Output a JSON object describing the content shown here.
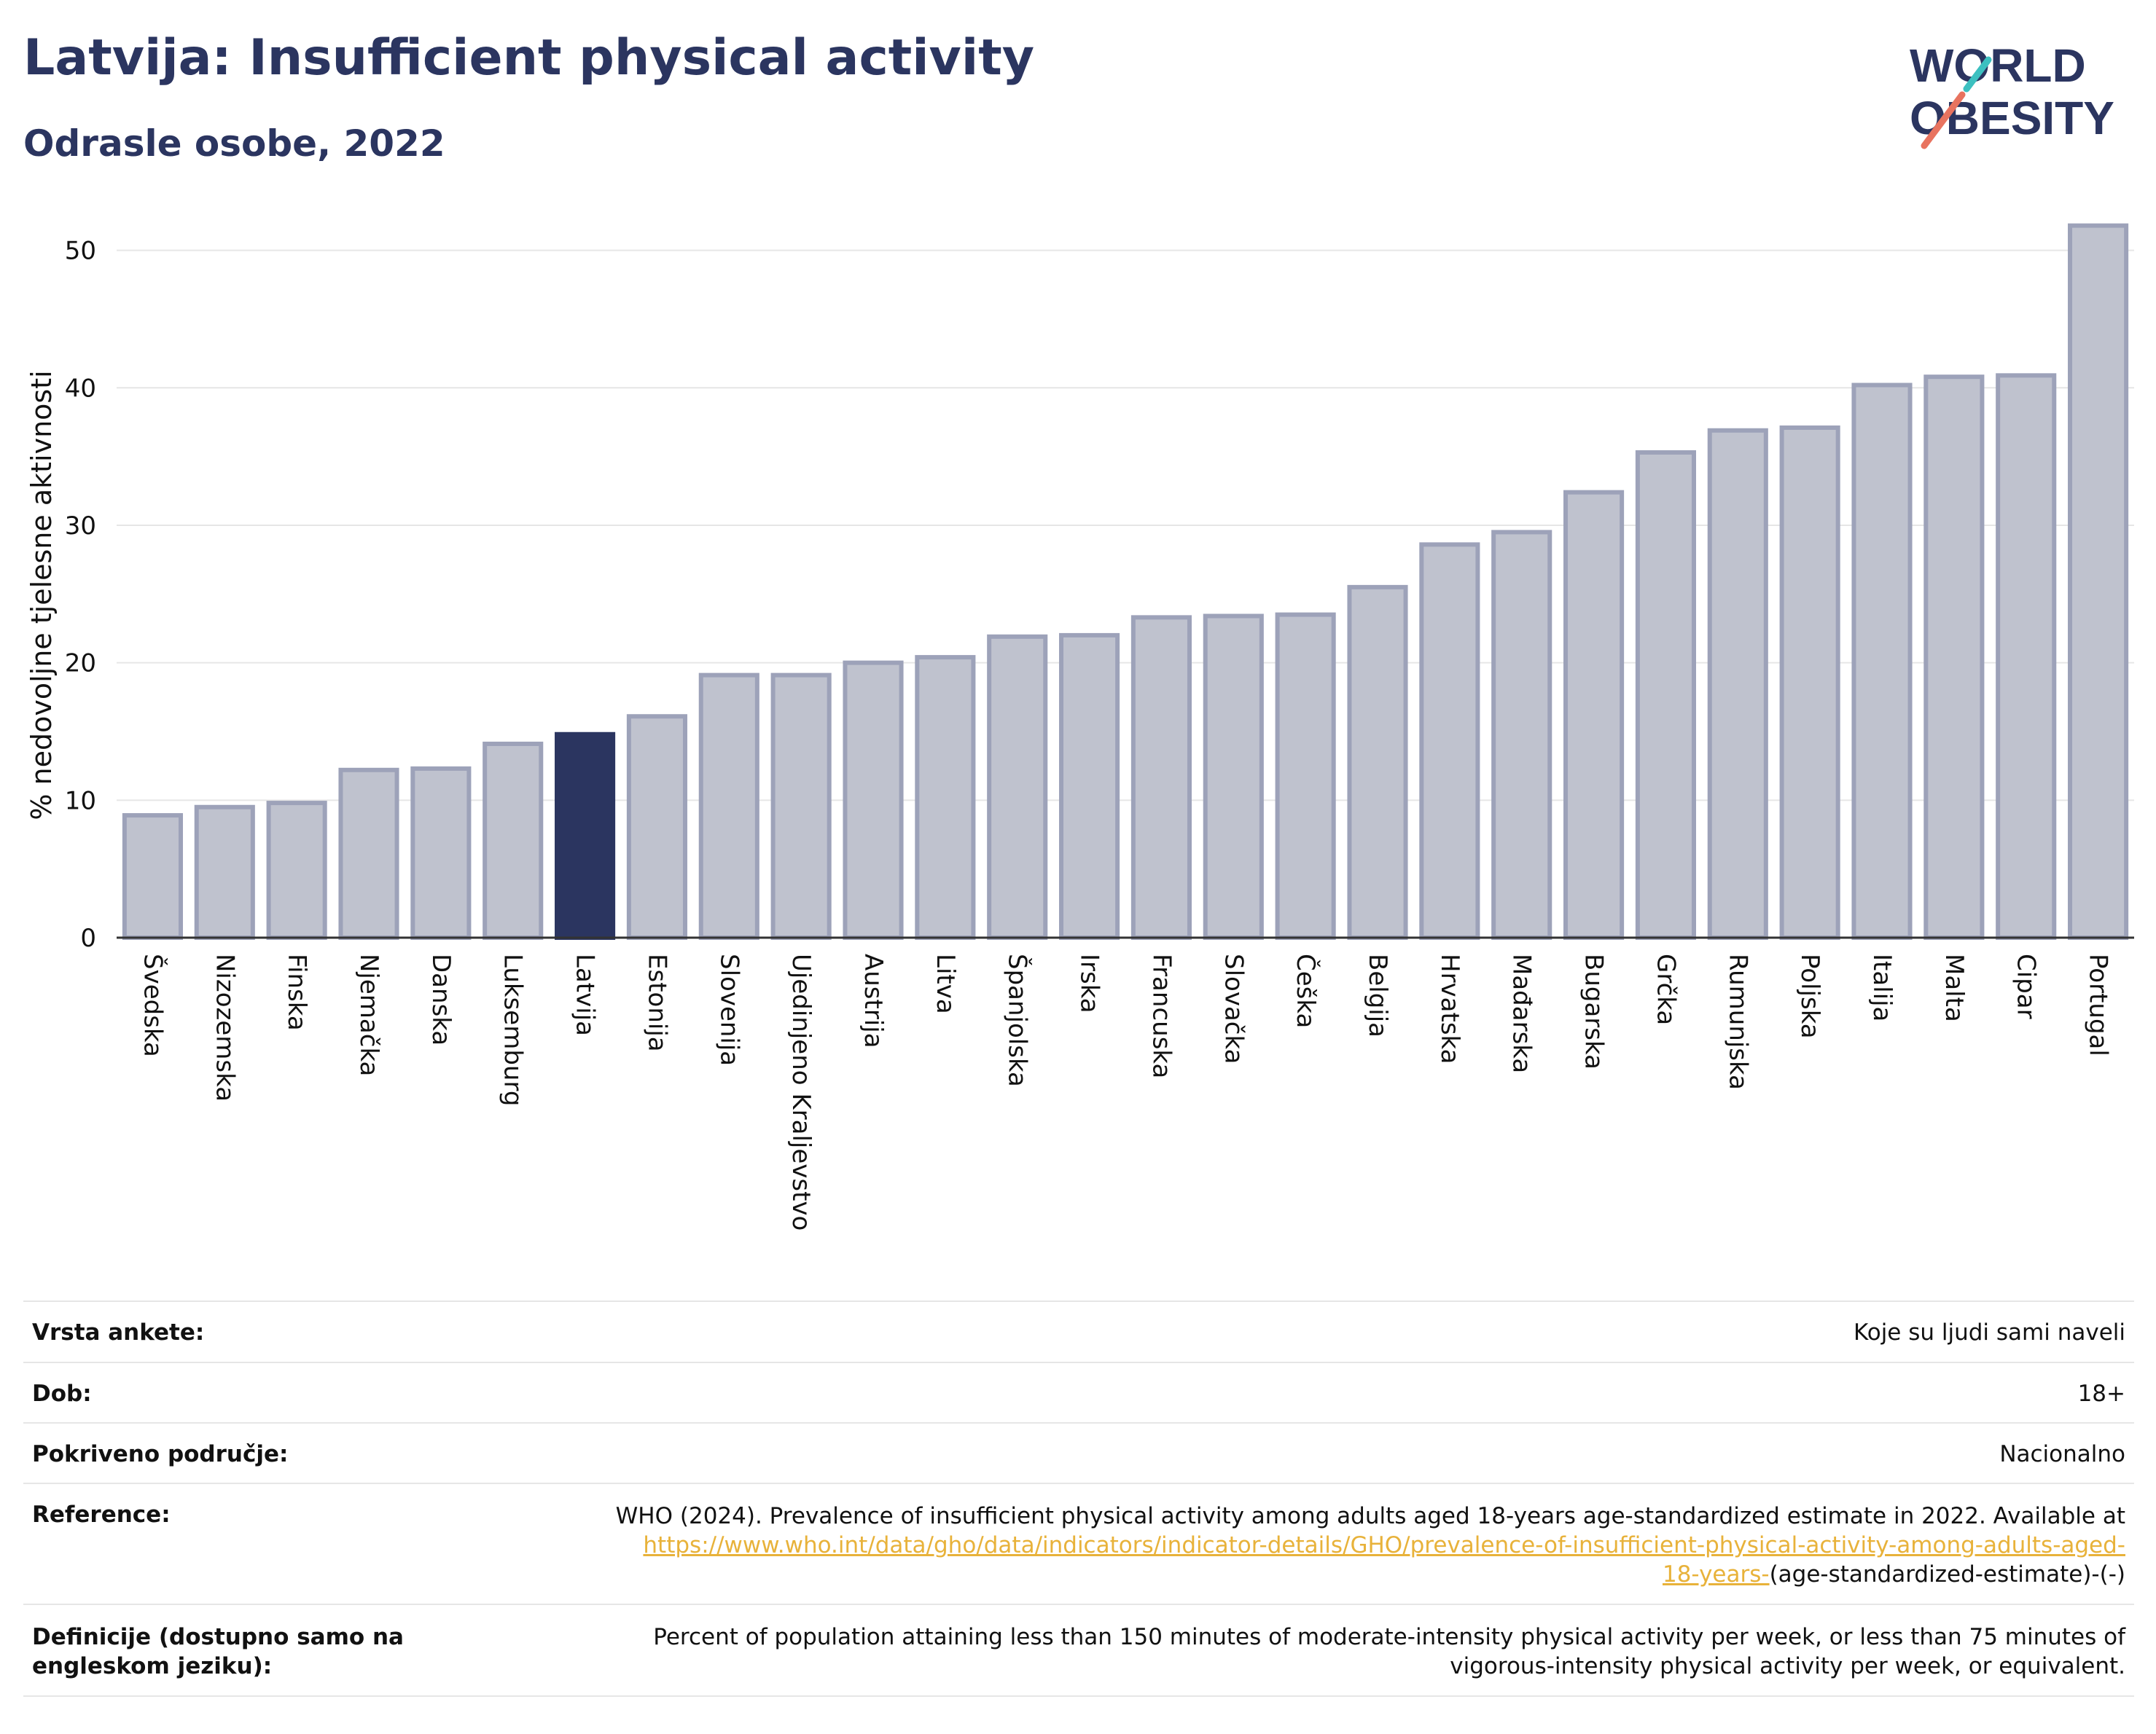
{
  "header": {
    "title": "Latvija: Insufficient physical activity",
    "subtitle": "Odrasle osobe, 2022",
    "logo_line1": "WORLD",
    "logo_line2": "OBESITY"
  },
  "colors": {
    "bar": "#bfc2ce",
    "bar_border": "#9da2b9",
    "highlight": "#2b3560",
    "text": "#111111",
    "grid": "#e6e6e6",
    "link": "#e8b23a"
  },
  "chart_data": {
    "type": "bar",
    "ylabel": "% nedovoljne tjelesne aktivnosti",
    "ylim": [
      0,
      53
    ],
    "yticks": [
      0,
      10,
      20,
      30,
      40,
      50
    ],
    "grid": true,
    "highlight": "Latvija",
    "categories": [
      "Švedska",
      "Nizozemska",
      "Finska",
      "Njemačka",
      "Danska",
      "Luksemburg",
      "Latvija",
      "Estonija",
      "Slovenija",
      "Ujedinjeno Kraljevstvo",
      "Austrija",
      "Litva",
      "Španjolska",
      "Irska",
      "Francuska",
      "Slovačka",
      "Češka",
      "Belgija",
      "Hrvatska",
      "Mađarska",
      "Bugarska",
      "Grčka",
      "Rumunjska",
      "Poljska",
      "Italija",
      "Malta",
      "Cipar",
      "Portugal"
    ],
    "values": [
      8.9,
      9.5,
      9.8,
      12.2,
      12.3,
      14.1,
      14.8,
      16.1,
      19.1,
      19.1,
      20.0,
      20.4,
      21.9,
      22.0,
      23.3,
      23.4,
      23.5,
      25.5,
      28.6,
      29.5,
      32.4,
      35.3,
      36.9,
      37.1,
      40.2,
      40.8,
      40.9,
      51.8
    ]
  },
  "meta": {
    "survey_type_label": "Vrsta ankete:",
    "survey_type_value": "Koje su ljudi sami naveli",
    "age_label": "Dob:",
    "age_value": "18+",
    "coverage_label": "Pokriveno područje:",
    "coverage_value": "Nacionalno",
    "reference_label": "Reference:",
    "reference_text": "WHO (2024). Prevalence of insufficient physical activity among adults aged 18-years age-standardized estimate in 2022. Available at",
    "reference_link_1": "https://www.who.int/data/gho/data/indicators/indicator-details/GHO/prevalence-of-insufficient-physical-activity-among-adults-aged-",
    "reference_link_2": "18-years-",
    "reference_suffix": "(age-standardized-estimate)-(-)",
    "definitions_label": "Definicije (dostupno samo na engleskom jeziku):",
    "definitions_text": "Percent of population attaining less than 150 minutes of moderate-intensity physical activity per week, or less than 75 minutes of vigorous-intensity physical activity per week, or equivalent."
  }
}
